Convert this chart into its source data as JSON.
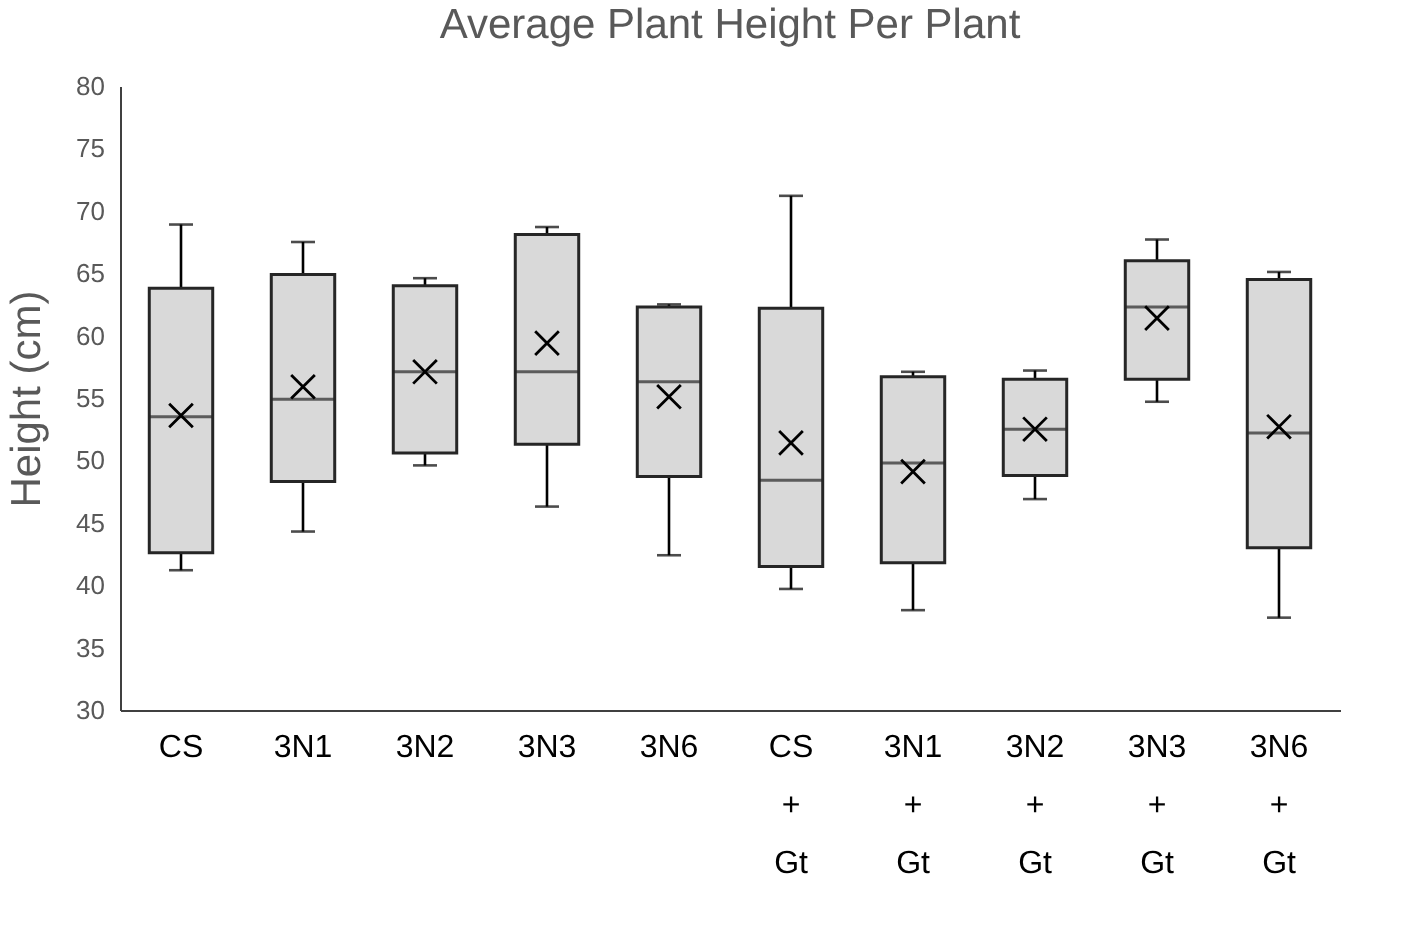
{
  "chart_data": {
    "type": "box",
    "title": "Average Plant Height Per Plant",
    "ylabel": "Height (cm)",
    "categories": [
      "CS",
      "3N1",
      "3N2",
      "3N3",
      "3N6",
      "CS + Gt",
      "3N1 + Gt",
      "3N2 + Gt",
      "3N3 + Gt",
      "3N6 + Gt"
    ],
    "ylim": [
      30,
      80
    ],
    "yticks": [
      30,
      35,
      40,
      45,
      50,
      55,
      60,
      65,
      70,
      75,
      80
    ],
    "grid": false,
    "series": [
      {
        "color": "#d9d9d9",
        "boxes": [
          {
            "low": 41.2,
            "q1": 42.6,
            "median": 53.5,
            "q3": 63.8,
            "high": 68.9,
            "mean": 53.6
          },
          {
            "low": 44.3,
            "q1": 48.3,
            "median": 54.9,
            "q3": 64.9,
            "high": 67.5,
            "mean": 55.9
          },
          {
            "low": 49.6,
            "q1": 50.6,
            "median": 57.1,
            "q3": 64.0,
            "high": 64.6,
            "mean": 57.1
          },
          {
            "low": 46.3,
            "q1": 51.3,
            "median": 57.1,
            "q3": 68.1,
            "high": 68.7,
            "mean": 59.4
          },
          {
            "low": 42.4,
            "q1": 48.7,
            "median": 56.3,
            "q3": 62.3,
            "high": 62.5,
            "mean": 55.1
          },
          {
            "low": 39.7,
            "q1": 41.5,
            "median": 48.4,
            "q3": 62.2,
            "high": 71.2,
            "mean": 51.4
          },
          {
            "low": 38.0,
            "q1": 41.8,
            "median": 49.8,
            "q3": 56.7,
            "high": 57.1,
            "mean": 49.1
          },
          {
            "low": 46.9,
            "q1": 48.8,
            "median": 52.5,
            "q3": 56.5,
            "high": 57.2,
            "mean": 52.5
          },
          {
            "low": 54.7,
            "q1": 56.5,
            "median": 62.3,
            "q3": 66.0,
            "high": 67.7,
            "mean": 61.4
          },
          {
            "low": 37.4,
            "q1": 43.0,
            "median": 52.2,
            "q3": 64.5,
            "high": 65.1,
            "mean": 52.7
          }
        ]
      }
    ]
  }
}
